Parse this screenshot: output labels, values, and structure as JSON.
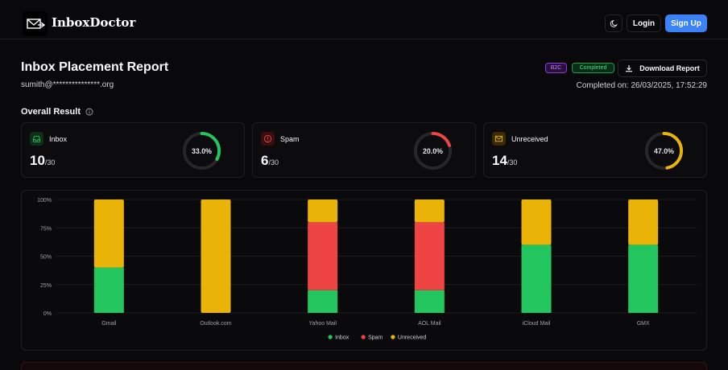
{
  "header": {
    "brand": "InboxDoctor",
    "login_label": "Login",
    "signup_label": "Sign Up"
  },
  "report": {
    "title": "Inbox Placement Report",
    "email": "sumith@***************.org",
    "badge_type": "B2C",
    "badge_status": "Completed",
    "download_label": "Download Report",
    "completed_on": "Completed on: 26/03/2025, 17:52:29"
  },
  "overall": {
    "title": "Overall Result",
    "cards": [
      {
        "label": "Inbox",
        "count": "10",
        "total": "/30",
        "percent_text": "33.0%",
        "percent": 33.0,
        "color": "#22c55e",
        "icon": "inbox-icon"
      },
      {
        "label": "Spam",
        "count": "6",
        "total": "/30",
        "percent_text": "20.0%",
        "percent": 20.0,
        "color": "#ef4444",
        "icon": "alert-circle-icon"
      },
      {
        "label": "Unreceived",
        "count": "14",
        "total": "/30",
        "percent_text": "47.0%",
        "percent": 47.0,
        "color": "#eab308",
        "icon": "mail-icon"
      }
    ]
  },
  "colors": {
    "inbox": "#22c55e",
    "spam": "#ef4444",
    "unreceived": "#eab308",
    "accent": "#3b82f6"
  },
  "chart_data": {
    "type": "bar",
    "stacked": true,
    "categories": [
      "Gmail",
      "Outlook.com",
      "Yahoo Mail",
      "AOL Mail",
      "iCloud Mail",
      "GMX"
    ],
    "series": [
      {
        "name": "Inbox",
        "color": "#22c55e",
        "values": [
          40,
          0,
          20,
          20,
          60,
          60
        ]
      },
      {
        "name": "Spam",
        "color": "#ef4444",
        "values": [
          0,
          0,
          60,
          60,
          0,
          0
        ]
      },
      {
        "name": "Unreceived",
        "color": "#eab308",
        "values": [
          60,
          100,
          20,
          20,
          40,
          40
        ]
      }
    ],
    "yticks": [
      "0%",
      "25%",
      "50%",
      "75%",
      "100%"
    ],
    "ylim": [
      0,
      100
    ],
    "legend_position": "bottom-center"
  }
}
